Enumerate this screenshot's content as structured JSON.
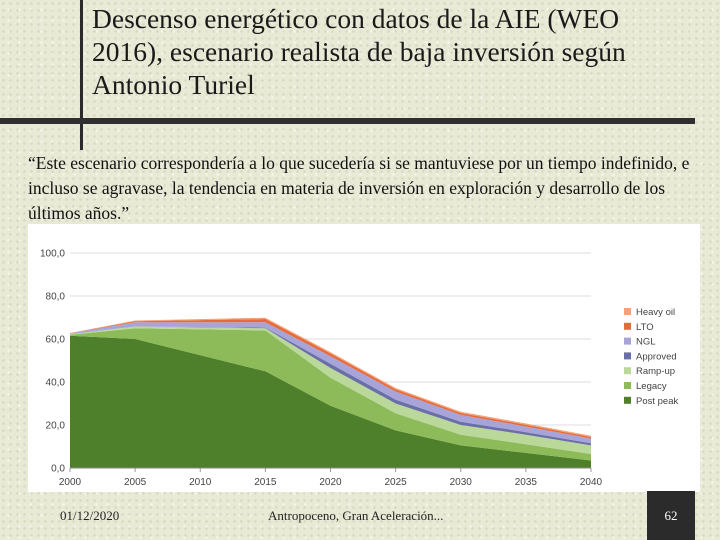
{
  "slide": {
    "title": "Descenso energético con datos de la AIE (WEO 2016), escenario realista de baja inversión según Antonio Turiel",
    "quote": "“Este escenario correspondería a lo que sucedería si se mantuviese por un tiempo indefinido, e incluso se agravase, la tendencia en materia de inversión en exploración y desarrollo de los últimos años.”",
    "footer_date": "01/12/2020",
    "footer_center": "Antropoceno, Gran Aceleración...",
    "page_number": "62"
  },
  "chart_data": {
    "type": "area",
    "stacked": true,
    "x": [
      2000,
      2005,
      2015,
      2020,
      2025,
      2030,
      2035,
      2040
    ],
    "xticks": [
      "2000",
      "2005",
      "2010",
      "2015",
      "2020",
      "2025",
      "2030",
      "2035",
      "2040"
    ],
    "yticks": [
      "0,0",
      "20,0",
      "40,0",
      "60,0",
      "80,0",
      "100,0"
    ],
    "ylim": [
      0,
      100
    ],
    "xlim": [
      2000,
      2040
    ],
    "legend_position": "right",
    "series": [
      {
        "name": "Post peak",
        "color": "#4e7f2a",
        "values": [
          61.5,
          60,
          45,
          29,
          17.5,
          10.5,
          7,
          3.5
        ]
      },
      {
        "name": "Legacy",
        "color": "#8dbb5a",
        "values": [
          0.5,
          5,
          19,
          13,
          8,
          5,
          4,
          3
        ]
      },
      {
        "name": "Ramp-up",
        "color": "#b9d89a",
        "values": [
          0.3,
          0.8,
          1,
          4.5,
          4.5,
          4.5,
          4.5,
          4
        ]
      },
      {
        "name": "Approved",
        "color": "#6b6fa8",
        "values": [
          0,
          0,
          0.3,
          2,
          1.8,
          1.5,
          1.2,
          1
        ]
      },
      {
        "name": "NGL",
        "color": "#a6a4d8",
        "values": [
          0.3,
          2,
          2.5,
          3.5,
          3.8,
          3.2,
          2.6,
          2.2
        ]
      },
      {
        "name": "LTO",
        "color": "#e86a3a",
        "values": [
          0.1,
          0.5,
          1.5,
          1.3,
          1,
          0.9,
          0.8,
          0.7
        ]
      },
      {
        "name": "Heavy oil",
        "color": "#f4a276",
        "values": [
          0.1,
          0.3,
          0.6,
          0.6,
          0.6,
          0.6,
          0.6,
          0.6
        ]
      }
    ],
    "legend_order": [
      "Heavy oil",
      "LTO",
      "NGL",
      "Approved",
      "Ramp-up",
      "Legacy",
      "Post peak"
    ]
  }
}
